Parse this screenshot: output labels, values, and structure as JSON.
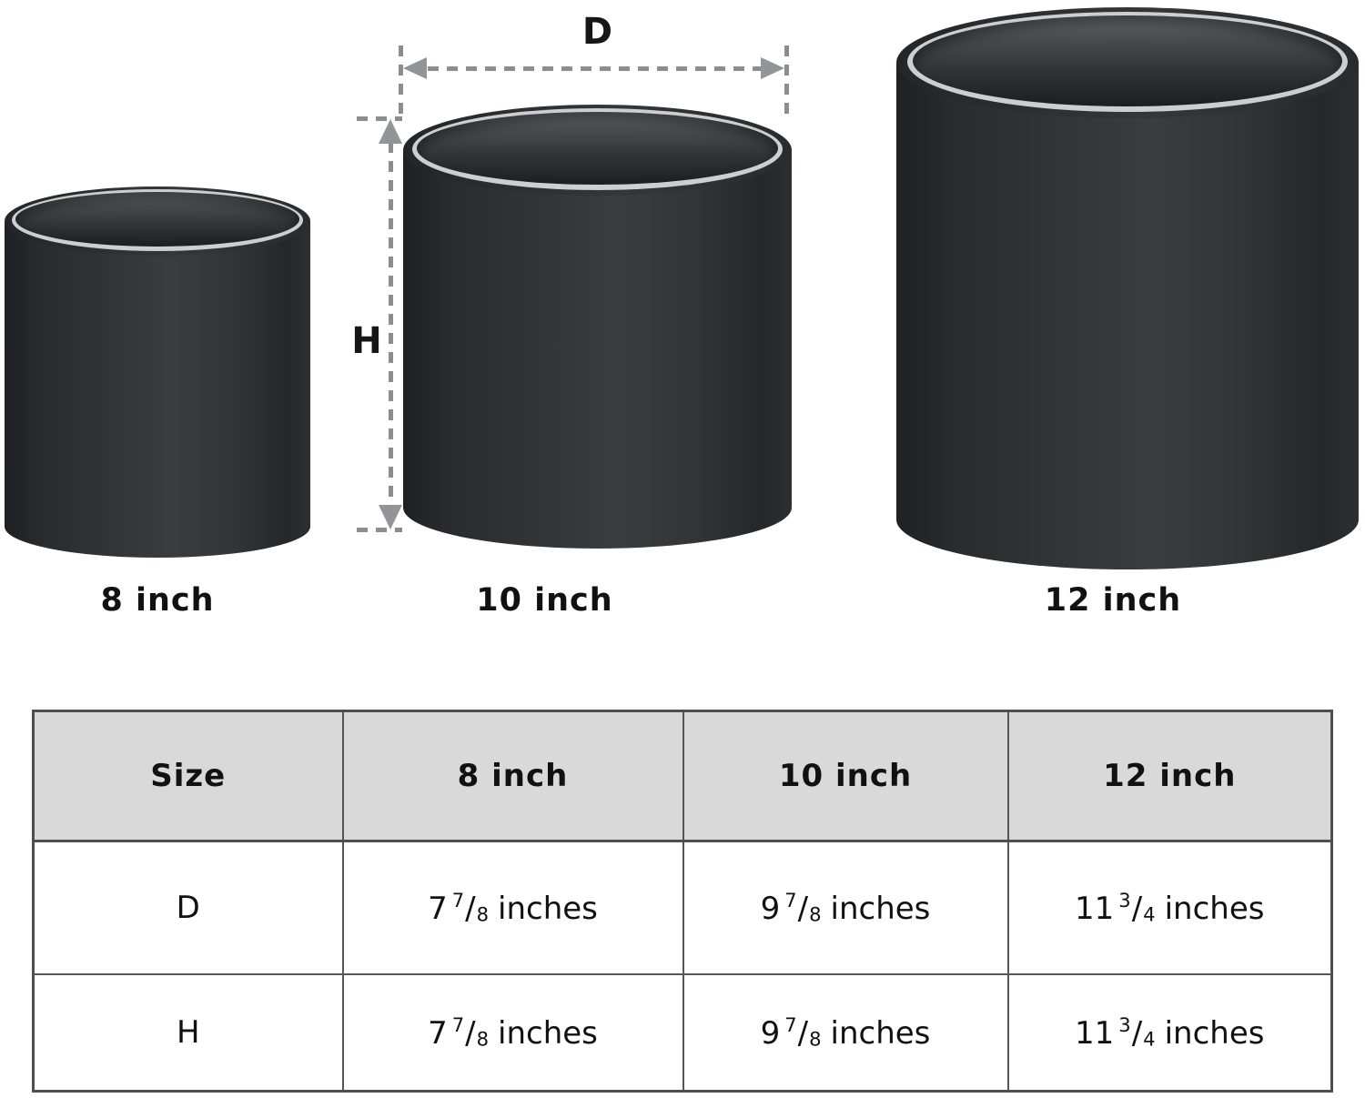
{
  "diagram": {
    "d_label": "D",
    "h_label": "H",
    "pot_labels": [
      "8 inch",
      "10 inch",
      "12 inch"
    ]
  },
  "table": {
    "fraction_slash": "/",
    "headers": [
      "Size",
      "8 inch",
      "10 inch",
      "12 inch"
    ],
    "rows": [
      {
        "dim": "D",
        "values": [
          {
            "whole": "7",
            "num": "7",
            "den": "8",
            "unit": "inches"
          },
          {
            "whole": "9",
            "num": "7",
            "den": "8",
            "unit": "inches"
          },
          {
            "whole": "11",
            "num": "3",
            "den": "4",
            "unit": "inches"
          }
        ]
      },
      {
        "dim": "H",
        "values": [
          {
            "whole": "7",
            "num": "7",
            "den": "8",
            "unit": "inches"
          },
          {
            "whole": "9",
            "num": "7",
            "den": "8",
            "unit": "inches"
          },
          {
            "whole": "11",
            "num": "3",
            "den": "4",
            "unit": "inches"
          }
        ]
      }
    ]
  },
  "colors": {
    "pot_body": "#2e2f32",
    "pot_opening_dark": "#1e1f22",
    "pot_lip_highlight": "#cdced1",
    "dimension_gray": "#8c8d90",
    "table_header_bg": "#d9d9d9",
    "table_border": "#55565a",
    "text": "#111111"
  }
}
